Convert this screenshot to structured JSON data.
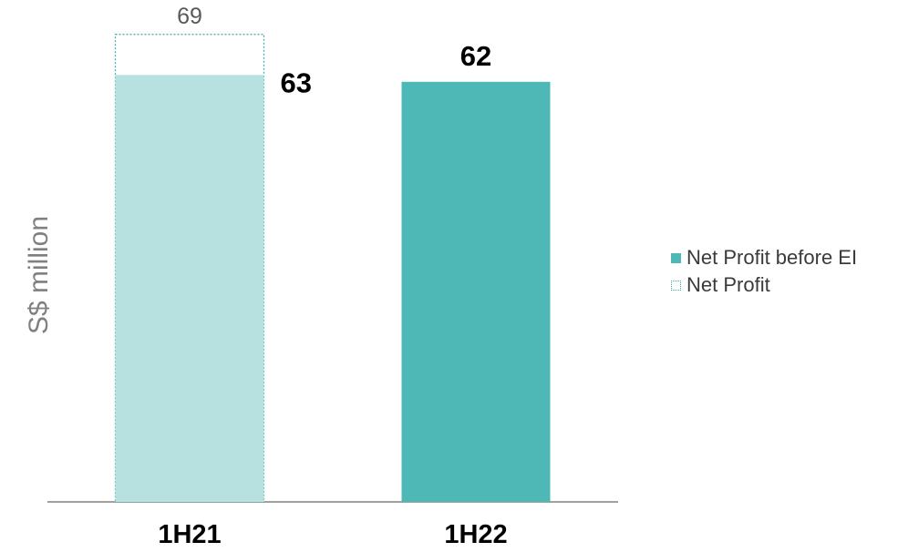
{
  "chart_data": {
    "type": "bar",
    "categories": [
      "1H21",
      "1H22"
    ],
    "ylabel": "S$ million",
    "ylim": [
      0,
      73
    ],
    "grid": false,
    "legend_position": "right",
    "series": [
      {
        "name": "Net Profit before EI",
        "values": [
          63,
          62
        ],
        "labels": [
          "63",
          "62"
        ]
      },
      {
        "name": "Net Profit",
        "values": [
          69,
          null
        ],
        "labels": [
          "69",
          ""
        ]
      }
    ],
    "colors": {
      "bar_1H21": "#b7e1e0",
      "bar_1H22": "#4db8b6",
      "net_profit_outline": "#3fa7a5",
      "axis": "#808080"
    }
  }
}
